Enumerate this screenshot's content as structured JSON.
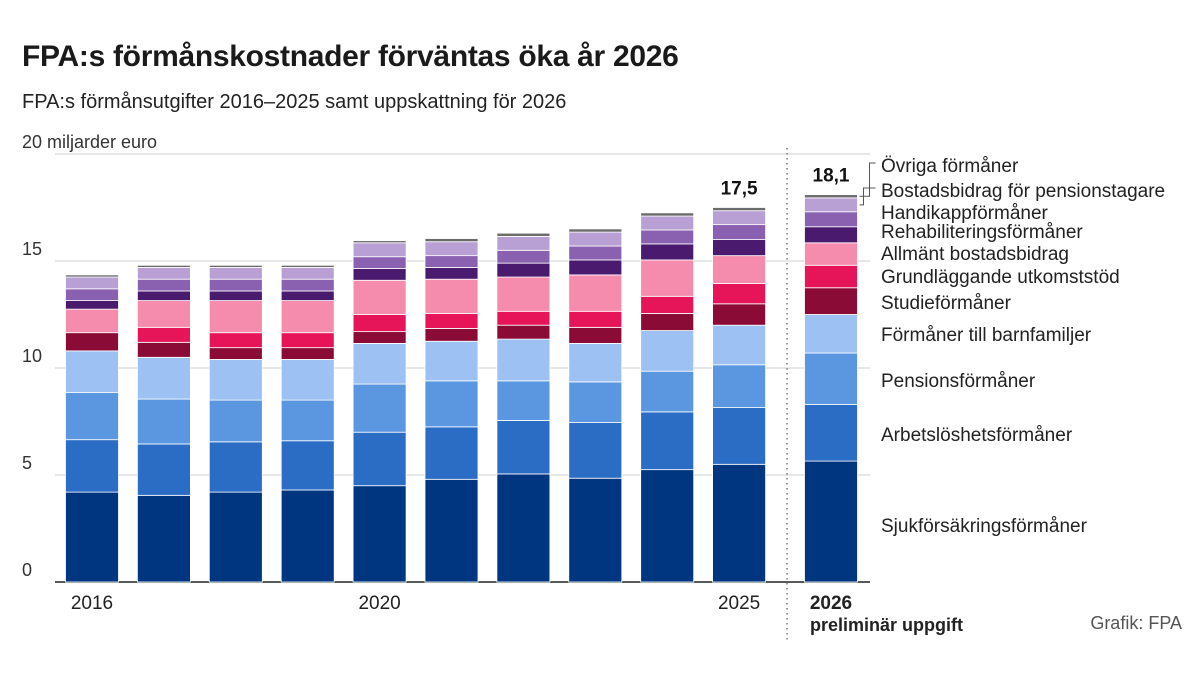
{
  "title": "FPA:s förmånskostnader förväntas öka år 2026",
  "subtitle": "FPA:s förmånsutgifter 2016–2025 samt uppskattning för 2026",
  "source": "Grafik: FPA",
  "chart_data": {
    "type": "bar",
    "stacked": true,
    "unit_label": "20 miljarder euro",
    "yticks": [
      0,
      5,
      10,
      15,
      20
    ],
    "ylim": [
      0,
      20
    ],
    "grid": true,
    "categories": [
      "2016",
      "2017",
      "2018",
      "2019",
      "2020",
      "2021",
      "2022",
      "2023",
      "2024",
      "2025",
      "2026"
    ],
    "x_tick_labels": [
      "2016",
      "",
      "",
      "",
      "2020",
      "",
      "",
      "",
      "",
      "2025",
      "2026"
    ],
    "preliminary_note": "preliminär uppgift",
    "totals_shown": [
      {
        "index": 9,
        "label": "17,5"
      },
      {
        "index": 10,
        "label": "18,1"
      }
    ],
    "series": [
      {
        "name": "Sjukförsäkringsförmåner",
        "color": "#003580",
        "values": [
          4.2,
          4.05,
          4.2,
          4.3,
          4.5,
          4.8,
          5.05,
          4.85,
          5.25,
          5.5,
          5.65
        ]
      },
      {
        "name": "Arbetslöshetsförmåner",
        "color": "#2b6cc4",
        "values": [
          2.45,
          2.4,
          2.35,
          2.3,
          2.5,
          2.45,
          2.5,
          2.6,
          2.7,
          2.65,
          2.65
        ]
      },
      {
        "name": "Pensionsförmåner",
        "color": "#5b96e0",
        "values": [
          2.2,
          2.1,
          1.95,
          1.9,
          2.25,
          2.15,
          1.85,
          1.9,
          1.9,
          2.0,
          2.4
        ]
      },
      {
        "name": "Förmåner till barnfamiljer",
        "color": "#9cc1f2",
        "values": [
          1.95,
          1.95,
          1.9,
          1.9,
          1.9,
          1.85,
          1.95,
          1.8,
          1.9,
          1.85,
          1.8
        ]
      },
      {
        "name": "Studieförmåner",
        "color": "#8a0c36",
        "values": [
          0.85,
          0.7,
          0.55,
          0.55,
          0.55,
          0.6,
          0.65,
          0.75,
          0.8,
          1.0,
          1.25
        ]
      },
      {
        "name": "Grundläggande utkomststöd",
        "color": "#e6155a",
        "values": [
          0.0,
          0.7,
          0.7,
          0.7,
          0.8,
          0.7,
          0.65,
          0.75,
          0.8,
          0.95,
          1.05
        ]
      },
      {
        "name": "Allmänt bostadsbidrag",
        "color": "#f58cad",
        "values": [
          1.1,
          1.25,
          1.5,
          1.5,
          1.6,
          1.6,
          1.6,
          1.7,
          1.7,
          1.3,
          1.05
        ]
      },
      {
        "name": "Rehabiliteringsförmåner",
        "color": "#4a1a6e",
        "values": [
          0.4,
          0.45,
          0.45,
          0.45,
          0.55,
          0.55,
          0.65,
          0.7,
          0.75,
          0.75,
          0.75
        ]
      },
      {
        "name": "Handikappförmåner",
        "color": "#8a60b0",
        "values": [
          0.55,
          0.55,
          0.55,
          0.55,
          0.55,
          0.55,
          0.6,
          0.65,
          0.65,
          0.7,
          0.7
        ]
      },
      {
        "name": "Bostadsbidrag för pensionstagare",
        "color": "#b8a0d4",
        "values": [
          0.55,
          0.55,
          0.55,
          0.55,
          0.65,
          0.65,
          0.65,
          0.65,
          0.65,
          0.65,
          0.65
        ]
      },
      {
        "name": "Övriga förmåner",
        "color": "#6b6b6b",
        "values": [
          0.1,
          0.1,
          0.1,
          0.1,
          0.1,
          0.15,
          0.15,
          0.15,
          0.15,
          0.15,
          0.15
        ]
      }
    ]
  }
}
